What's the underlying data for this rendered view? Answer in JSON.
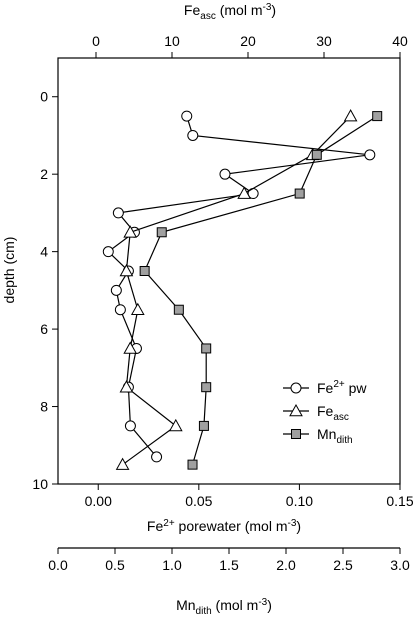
{
  "chart_data": {
    "type": "scatter",
    "y_axis": {
      "label": "depth (cm)",
      "range": [
        10,
        -1
      ],
      "ticks": [
        0,
        2,
        4,
        6,
        8,
        10
      ],
      "tick_labels": [
        "0",
        "2",
        "4",
        "6",
        "8",
        "10"
      ],
      "reversed": true
    },
    "x_axes": {
      "bottom": {
        "label_main": "Fe",
        "label_sup": "2+",
        "label_rest": " porewater (mol m",
        "label_exp": "-3",
        "label_end": ")",
        "range": [
          -0.02,
          0.15
        ],
        "ticks": [
          0.0,
          0.05,
          0.1,
          0.15
        ],
        "tick_labels": [
          "0.00",
          "0.05",
          "0.10",
          "0.15"
        ]
      },
      "top": {
        "label_main": "Fe",
        "label_sub": "asc",
        "label_rest": " (mol m",
        "label_exp": "-3",
        "label_end": ")",
        "range": [
          -5,
          40
        ],
        "ticks": [
          0,
          10,
          20,
          30,
          40
        ],
        "tick_labels": [
          "0",
          "10",
          "20",
          "30",
          "40"
        ]
      },
      "second_bottom": {
        "label_main": "Mn",
        "label_sub": "dith",
        "label_rest": " (mol m",
        "label_exp": "-3",
        "label_end": ")",
        "range": [
          0,
          3.0
        ],
        "ticks": [
          0.0,
          0.5,
          1.0,
          1.5,
          2.0,
          2.5,
          3.0
        ],
        "tick_labels": [
          "0.0",
          "0.5",
          "1.0",
          "1.5",
          "2.0",
          "2.5",
          "3.0"
        ]
      }
    },
    "series": [
      {
        "name_main": "Fe",
        "name_sup": "2+",
        "name_rest": " pw",
        "axis": "bottom",
        "marker": "circle",
        "points": [
          {
            "x": 0.044,
            "depth": 0.5
          },
          {
            "x": 0.047,
            "depth": 1.0
          },
          {
            "x": 0.135,
            "depth": 1.5
          },
          {
            "x": 0.063,
            "depth": 2.0
          },
          {
            "x": 0.077,
            "depth": 2.5
          },
          {
            "x": 0.01,
            "depth": 3.0
          },
          {
            "x": 0.018,
            "depth": 3.5
          },
          {
            "x": 0.005,
            "depth": 4.0
          },
          {
            "x": 0.015,
            "depth": 4.5
          },
          {
            "x": 0.009,
            "depth": 5.0
          },
          {
            "x": 0.011,
            "depth": 5.5
          },
          {
            "x": 0.019,
            "depth": 6.5
          },
          {
            "x": 0.015,
            "depth": 7.5
          },
          {
            "x": 0.016,
            "depth": 8.5
          },
          {
            "x": 0.029,
            "depth": 9.3
          }
        ]
      },
      {
        "name_main": "Fe",
        "name_sub": "asc",
        "axis": "top",
        "marker": "triangle",
        "points": [
          {
            "x": 33.5,
            "depth": 0.5
          },
          {
            "x": 28.5,
            "depth": 1.5
          },
          {
            "x": 19.5,
            "depth": 2.5
          },
          {
            "x": 4.5,
            "depth": 3.5
          },
          {
            "x": 4.0,
            "depth": 4.5
          },
          {
            "x": 5.5,
            "depth": 5.5
          },
          {
            "x": 4.5,
            "depth": 6.5
          },
          {
            "x": 4.0,
            "depth": 7.5
          },
          {
            "x": 10.5,
            "depth": 8.5
          },
          {
            "x": 3.5,
            "depth": 9.5
          }
        ]
      },
      {
        "name_main": "Mn",
        "name_sub": "dith",
        "axis": "second_bottom",
        "marker": "square",
        "points": [
          {
            "x": 2.8,
            "depth": 0.5
          },
          {
            "x": 2.27,
            "depth": 1.5
          },
          {
            "x": 2.12,
            "depth": 2.5
          },
          {
            "x": 0.91,
            "depth": 3.5
          },
          {
            "x": 0.76,
            "depth": 4.5
          },
          {
            "x": 1.06,
            "depth": 5.5
          },
          {
            "x": 1.3,
            "depth": 6.5
          },
          {
            "x": 1.3,
            "depth": 7.5
          },
          {
            "x": 1.28,
            "depth": 8.5
          },
          {
            "x": 1.18,
            "depth": 9.5
          }
        ]
      }
    ],
    "legend": {
      "placement": "bottom-right"
    },
    "grid": false
  },
  "colors": {
    "square_fill": "#a0a0a0",
    "marker_stroke": "#000000",
    "open_fill": "#ffffff"
  }
}
